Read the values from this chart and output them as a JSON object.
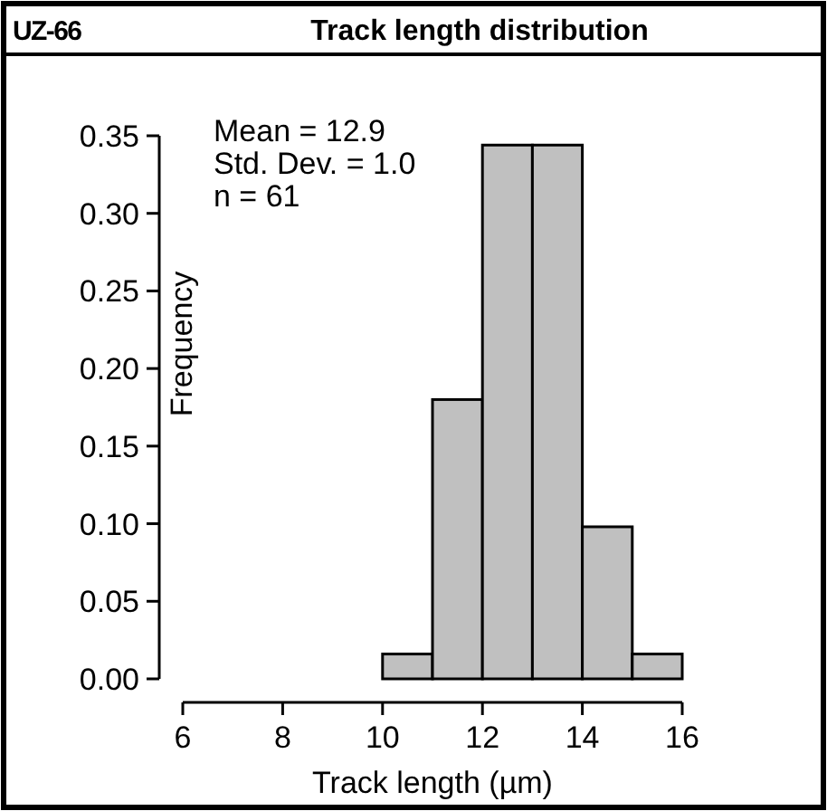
{
  "chart_data": {
    "type": "histogram",
    "title": "Track length distribution",
    "xlabel": "Track length (µm)",
    "ylabel": "Frequency",
    "annotations": [
      "UZ-66",
      "Mean = 12.9",
      "Std. Dev. = 1.0",
      "n = 61"
    ],
    "bins": [
      6,
      7,
      8,
      9,
      10,
      11,
      12,
      13,
      14,
      15,
      16
    ],
    "values": [
      0,
      0,
      0,
      0,
      0.016,
      0.18,
      0.344,
      0.344,
      0.098,
      0.016
    ],
    "color": "#c0c0c0",
    "xlim": [
      6,
      16
    ],
    "xticks": [
      6,
      8,
      10,
      12,
      14,
      16
    ],
    "ylim": [
      0,
      0.35
    ],
    "yticks": [
      {
        "value": 0,
        "label": "0.00"
      },
      {
        "value": 0.05,
        "label": "0.05"
      },
      {
        "value": 0.1,
        "label": "0.10"
      },
      {
        "value": 0.15,
        "label": "0.15"
      },
      {
        "value": 0.2,
        "label": "0.20"
      },
      {
        "value": 0.25,
        "label": "0.25"
      },
      {
        "value": 0.3,
        "label": "0.30"
      },
      {
        "value": 0.35,
        "label": "0.35"
      }
    ],
    "grid": false
  }
}
